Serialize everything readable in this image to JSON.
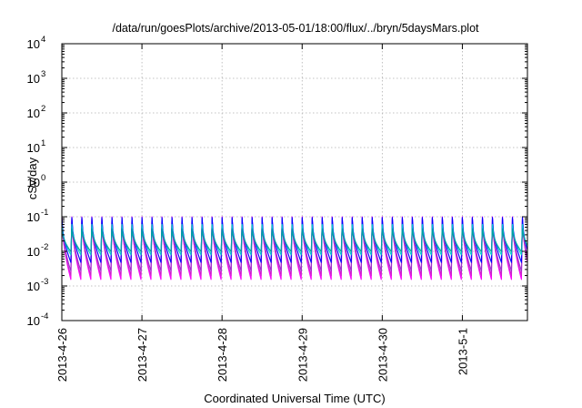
{
  "chart_data": {
    "type": "line",
    "title": "/data/run/goesPlots/archive/2013-05-01/18:00/flux/../bryn/5daysMars.plot",
    "xlabel": "Coordinated Universal Time (UTC)",
    "ylabel": "cSv/day",
    "yscale": "log",
    "ylim": [
      0.0001,
      10000
    ],
    "y_ticks": [
      {
        "value": 0.0001,
        "base": "10",
        "exp": "-4"
      },
      {
        "value": 0.001,
        "base": "10",
        "exp": "-3"
      },
      {
        "value": 0.01,
        "base": "10",
        "exp": "-2"
      },
      {
        "value": 0.1,
        "base": "10",
        "exp": "-1"
      },
      {
        "value": 1,
        "base": "10",
        "exp": "0"
      },
      {
        "value": 10,
        "base": "10",
        "exp": "1"
      },
      {
        "value": 100,
        "base": "10",
        "exp": "2"
      },
      {
        "value": 1000,
        "base": "10",
        "exp": "3"
      },
      {
        "value": 10000,
        "base": "10",
        "exp": "4"
      }
    ],
    "xlim": [
      "2013-04-26T00:00",
      "2013-05-01T19:30"
    ],
    "x_ticks": [
      {
        "label": "2013-4-26",
        "value": "2013-04-26T00:00"
      },
      {
        "label": "2013-4-27",
        "value": "2013-04-27T00:00"
      },
      {
        "label": "2013-4-28",
        "value": "2013-04-28T00:00"
      },
      {
        "label": "2013-4-29",
        "value": "2013-04-29T00:00"
      },
      {
        "label": "2013-4-30",
        "value": "2013-04-30T00:00"
      },
      {
        "label": "2013-5-1",
        "value": "2013-05-01T00:00"
      }
    ],
    "grid": true,
    "cycle_hours": 3,
    "series": [
      {
        "color": "#ff00ff",
        "peak": 0.1,
        "trough": 0.0012
      },
      {
        "color": "#cc22cc",
        "peak": 0.085,
        "trough": 0.0016
      },
      {
        "color": "#9933cc",
        "peak": 0.09,
        "trough": 0.0022
      },
      {
        "color": "#0000ff",
        "peak": 0.095,
        "trough": 0.004
      },
      {
        "color": "#00cccc",
        "peak": 0.06,
        "trough": 0.007
      },
      {
        "color": "#00a0a0",
        "peak": 0.045,
        "trough": 0.009
      }
    ]
  }
}
